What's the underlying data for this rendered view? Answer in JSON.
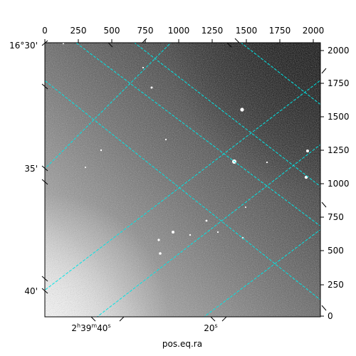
{
  "figure": {
    "xlabel": "pos.eq.ra",
    "grid_color": "#00e5e5",
    "top_ticks": [
      "0",
      "250",
      "500",
      "750",
      "1000",
      "1250",
      "1500",
      "1750",
      "2000"
    ],
    "right_ticks": [
      "0",
      "250",
      "500",
      "750",
      "1000",
      "1250",
      "1500",
      "1750",
      "2000"
    ],
    "left_ticks": [
      "16°30'",
      "35'",
      "40'"
    ],
    "bottom_ticks": [
      {
        "h": "2",
        "m": "39",
        "s": "40"
      },
      {
        "s": "20"
      }
    ]
  }
}
